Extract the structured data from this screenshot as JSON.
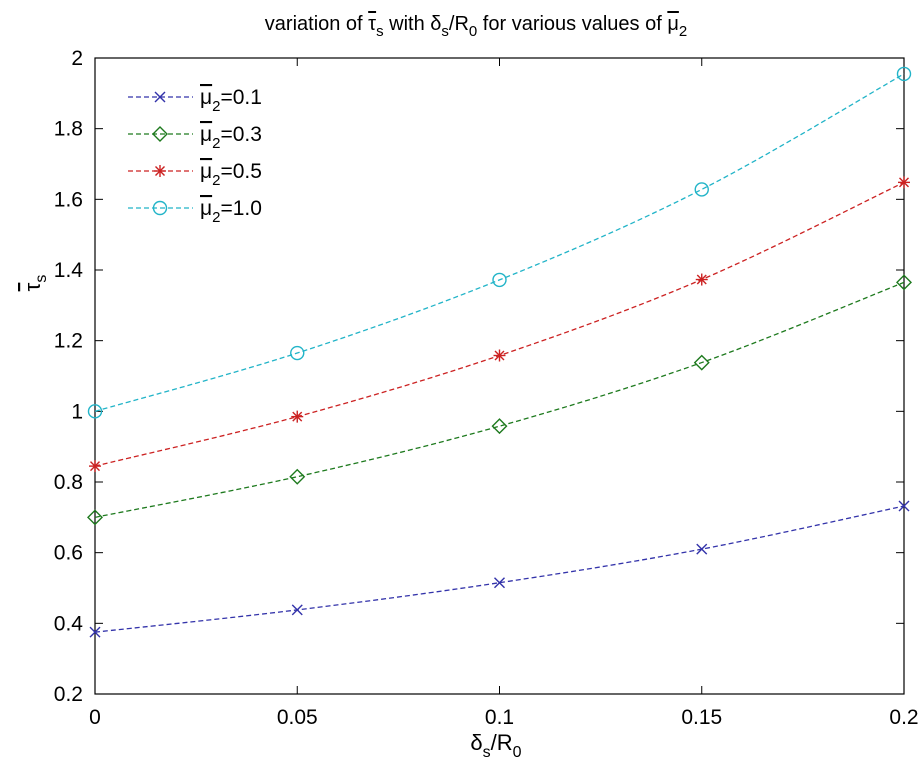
{
  "chart_data": {
    "type": "line",
    "title": {
      "pre": "variation of ",
      "tau": "τ",
      "tau_sub": "s",
      "mid1": " with ",
      "delta": "δ",
      "delta_sub": "s",
      "r": "/R",
      "r_sub": "0",
      "post": " for various  values of ",
      "mu": "μ",
      "mu_sub": "2"
    },
    "xlabel": {
      "delta": "δ",
      "delta_sub": "s",
      "r": "/R",
      "r_sub": "0"
    },
    "ylabel": {
      "tau": "τ",
      "sub": "s"
    },
    "x": [
      0,
      0.05,
      0.1,
      0.15,
      0.2
    ],
    "xlim": [
      0,
      0.2
    ],
    "ylim": [
      0.2,
      2
    ],
    "xticks": [
      0,
      0.05,
      0.1,
      0.15,
      0.2
    ],
    "xtick_labels": [
      "0",
      "0.05",
      "0.1",
      "0.15",
      "0.2"
    ],
    "yticks": [
      0.2,
      0.4,
      0.6,
      0.8,
      1.0,
      1.2,
      1.4,
      1.6,
      1.8,
      2.0
    ],
    "ytick_labels": [
      "0.2",
      "0.4",
      "0.6",
      "0.8",
      "1",
      "1.2",
      "1.4",
      "1.6",
      "1.8",
      "2"
    ],
    "grid": false,
    "legend_position": "top-left",
    "series": [
      {
        "legend": {
          "mu": "μ",
          "sub": "2",
          "rest": "=0.1"
        },
        "color": "#3333aa",
        "marker": "x",
        "values": [
          0.375,
          0.438,
          0.515,
          0.61,
          0.732
        ]
      },
      {
        "legend": {
          "mu": "μ",
          "sub": "2",
          "rest": "=0.3"
        },
        "color": "#1e7a1e",
        "marker": "diamond",
        "values": [
          0.7,
          0.815,
          0.958,
          1.138,
          1.365
        ]
      },
      {
        "legend": {
          "mu": "μ",
          "sub": "2",
          "rest": "=0.5"
        },
        "color": "#cc2222",
        "marker": "star",
        "values": [
          0.845,
          0.985,
          1.158,
          1.373,
          1.648
        ]
      },
      {
        "legend": {
          "mu": "μ",
          "sub": "2",
          "rest": "=1.0"
        },
        "color": "#22b4c8",
        "marker": "circle",
        "values": [
          1.0,
          1.165,
          1.372,
          1.628,
          1.955
        ]
      }
    ]
  }
}
